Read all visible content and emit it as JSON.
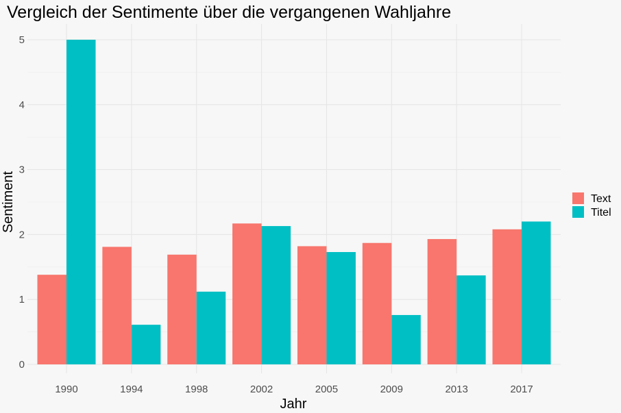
{
  "chart_data": {
    "type": "bar",
    "title": "Vergleich der Sentimente über die vergangenen Wahljahre",
    "xlabel": "Jahr",
    "ylabel": "Sentiment",
    "categories": [
      "1990",
      "1994",
      "1998",
      "2002",
      "2005",
      "2009",
      "2013",
      "2017"
    ],
    "series": [
      {
        "name": "Text",
        "color": "#f8766d",
        "values": [
          1.38,
          1.81,
          1.69,
          2.17,
          1.82,
          1.87,
          1.93,
          2.08
        ]
      },
      {
        "name": "Titel",
        "color": "#00bfc4",
        "values": [
          5.0,
          0.61,
          1.12,
          2.13,
          1.73,
          0.76,
          1.37,
          2.2
        ]
      }
    ],
    "ylim": [
      0,
      5
    ],
    "yticks": [
      0,
      1,
      2,
      3,
      4,
      5
    ],
    "grid": true,
    "legend": "right"
  }
}
